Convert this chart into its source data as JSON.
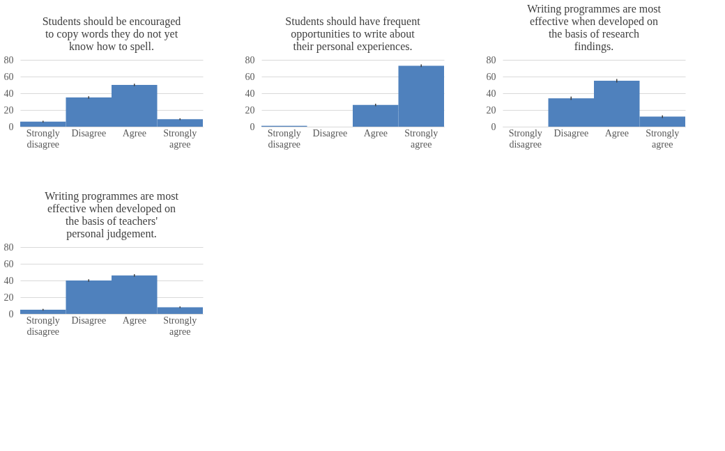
{
  "chart_data": [
    {
      "type": "bar",
      "title": "Students should be encouraged to copy words they do not yet know how to spell.",
      "categories": [
        "Strongly disagree",
        "Disagree",
        "Agree",
        "Strongly agree"
      ],
      "series": [
        {
          "color": "#4f81bd",
          "values": [
            6,
            35,
            50,
            9
          ],
          "errors": [
            1,
            1.5,
            1.5,
            1
          ]
        }
      ],
      "ylim": [
        0,
        80
      ],
      "yticks": [
        0,
        20,
        40,
        60,
        80
      ],
      "grid": "y"
    },
    {
      "type": "bar",
      "title": "Students should have frequent opportunities to write about their personal experiences.",
      "categories": [
        "Strongly disagree",
        "Disagree",
        "Agree",
        "Strongly agree"
      ],
      "series": [
        {
          "color": "#4f81bd",
          "values": [
            1,
            0,
            26,
            73
          ],
          "errors": [
            null,
            null,
            1.5,
            1.5
          ]
        }
      ],
      "ylim": [
        0,
        80
      ],
      "yticks": [
        0,
        20,
        40,
        60,
        80
      ],
      "grid": "y"
    },
    {
      "type": "bar",
      "title": "Writing programmes are most effective when developed on the basis of research findings.",
      "categories": [
        "Strongly disagree",
        "Disagree",
        "Agree",
        "Strongly agree"
      ],
      "series": [
        {
          "color": "#4f81bd",
          "values": [
            0,
            34,
            55,
            12
          ],
          "errors": [
            null,
            2,
            2,
            1.5
          ]
        }
      ],
      "ylim": [
        0,
        80
      ],
      "yticks": [
        0,
        20,
        40,
        60,
        80
      ],
      "grid": "y"
    },
    {
      "type": "bar",
      "title": "Writing programmes are most effective when developed on the basis of teachers' personal judgement.",
      "categories": [
        "Strongly disagree",
        "Disagree",
        "Agree",
        "Strongly agree"
      ],
      "series": [
        {
          "color": "#4f81bd",
          "values": [
            5,
            40,
            46,
            8
          ],
          "errors": [
            1,
            1.5,
            1.5,
            1
          ]
        }
      ],
      "ylim": [
        0,
        80
      ],
      "yticks": [
        0,
        20,
        40,
        60,
        80
      ],
      "grid": "y"
    }
  ]
}
